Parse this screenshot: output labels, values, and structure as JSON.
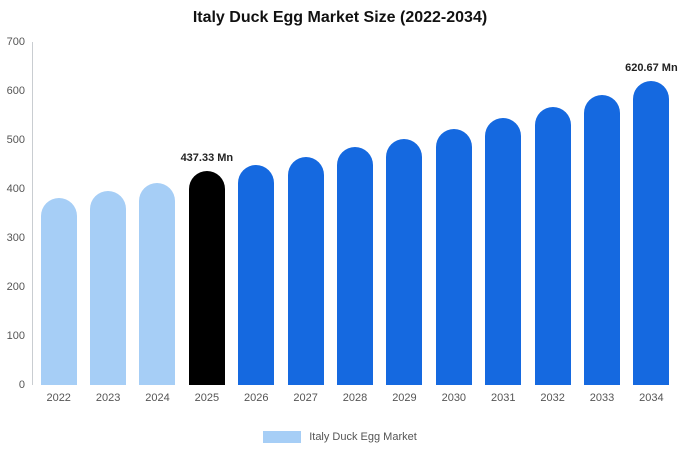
{
  "chart_data": {
    "type": "bar",
    "title": "Italy Duck Egg Market Size (2022-2034)",
    "categories": [
      "2022",
      "2023",
      "2024",
      "2025",
      "2026",
      "2027",
      "2028",
      "2029",
      "2030",
      "2031",
      "2032",
      "2033",
      "2034"
    ],
    "values": [
      381,
      396,
      412,
      437.33,
      450,
      466,
      485,
      503,
      523,
      545,
      567,
      591,
      620.67
    ],
    "bar_colors": [
      "#A6CEF6",
      "#A6CEF6",
      "#A6CEF6",
      "#000000",
      "#1569E0",
      "#1569E0",
      "#1569E0",
      "#1569E0",
      "#1569E0",
      "#1569E0",
      "#1569E0",
      "#1569E0",
      "#1569E0"
    ],
    "ylim": [
      0,
      700
    ],
    "yticks": [
      0,
      100,
      200,
      300,
      400,
      500,
      600,
      700
    ],
    "grid": false,
    "annotations": [
      {
        "category": "2025",
        "text": "437.33 Mn"
      },
      {
        "category": "2034",
        "text": "620.67 Mn"
      }
    ],
    "legend": {
      "label": "Italy Duck Egg Market",
      "color": "#A6CEF6"
    },
    "legend_position": "bottom"
  }
}
